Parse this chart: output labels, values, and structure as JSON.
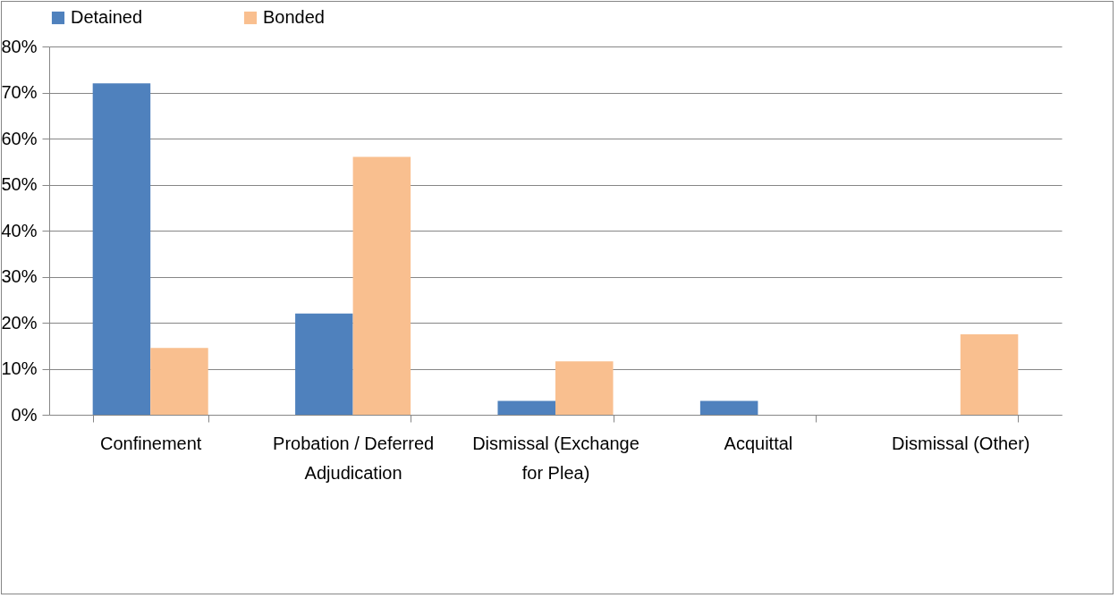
{
  "chart_data": {
    "type": "bar",
    "categories": [
      "Confinement",
      "Probation / Deferred Adjudication",
      "Dismissal (Exchange for Plea)",
      "Acquittal",
      "Dismissal (Other)"
    ],
    "series": [
      {
        "name": "Detained",
        "color": "#4f81bd",
        "values": [
          72,
          22,
          3,
          3,
          0
        ]
      },
      {
        "name": "Bonded",
        "color": "#f9bf8f",
        "values": [
          14.5,
          56,
          11.6,
          0,
          17.5
        ]
      }
    ],
    "ylim": [
      0,
      80
    ],
    "yticks": [
      {
        "value": 0,
        "label": "0%"
      },
      {
        "value": 10,
        "label": "10%"
      },
      {
        "value": 20,
        "label": "20%"
      },
      {
        "value": 30,
        "label": "30%"
      },
      {
        "value": 40,
        "label": "40%"
      },
      {
        "value": 50,
        "label": "50%"
      },
      {
        "value": 60,
        "label": "60%"
      },
      {
        "value": 70,
        "label": "70%"
      },
      {
        "value": 80,
        "label": "80%"
      }
    ],
    "grid": "y",
    "legend": "top"
  }
}
